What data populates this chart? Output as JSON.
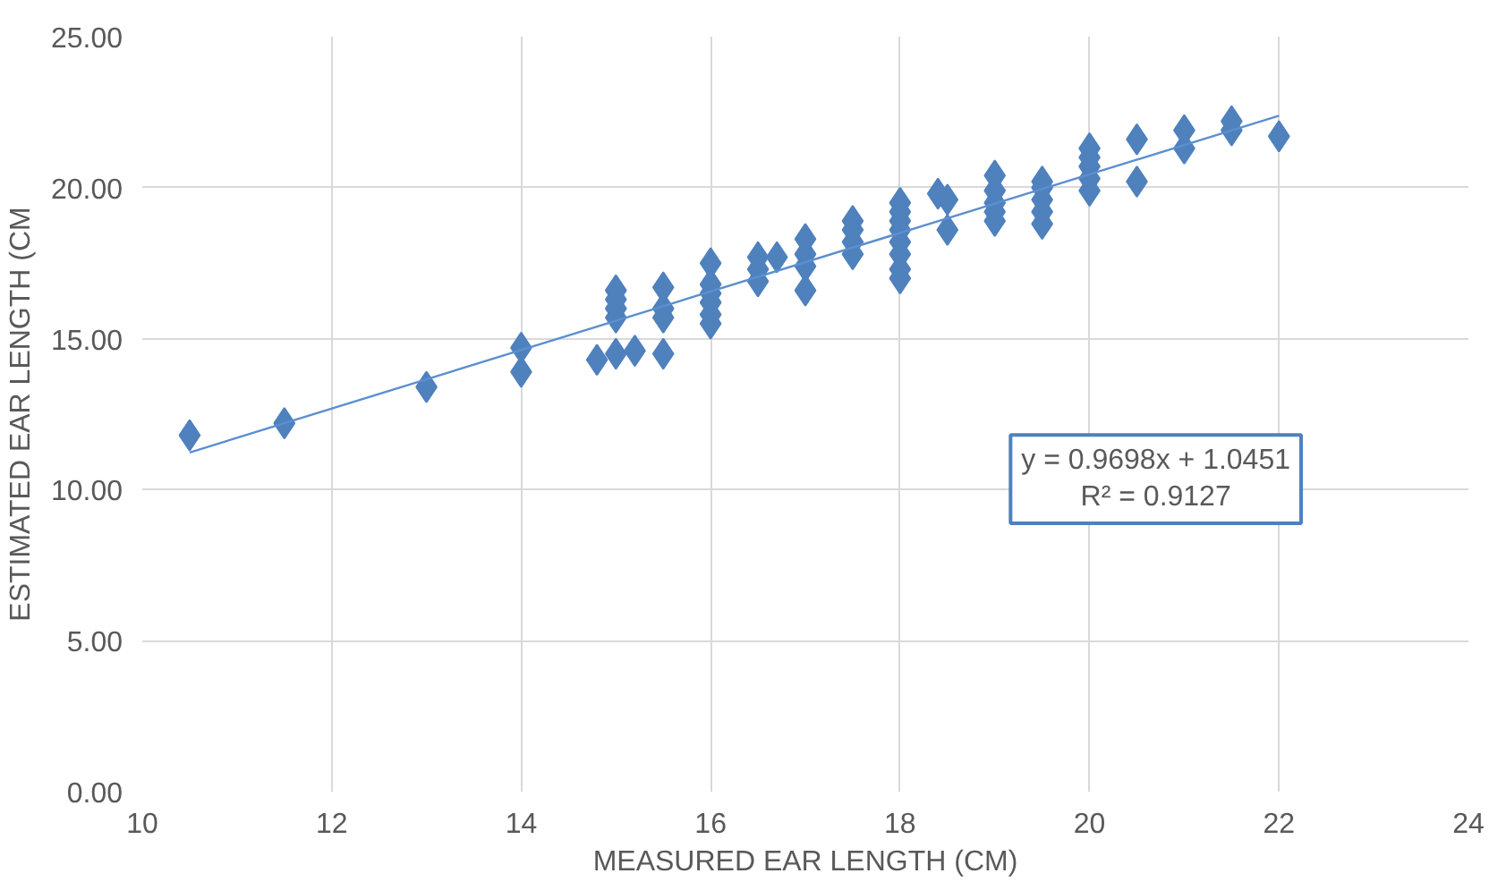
{
  "chart_data": {
    "type": "scatter",
    "xlabel": "MEASURED EAR LENGTH (CM)",
    "ylabel": "ESTIMATED EAR LENGTH (CM",
    "xlim": [
      10,
      24
    ],
    "xticks": [
      10,
      12,
      14,
      16,
      18,
      20,
      22,
      24
    ],
    "ylim": [
      0,
      25
    ],
    "yticks": [
      {
        "value": 0,
        "label": "0.00"
      },
      {
        "value": 5,
        "label": "5.00"
      },
      {
        "value": 10,
        "label": "10.00"
      },
      {
        "value": 15,
        "label": "15.00"
      },
      {
        "value": 20,
        "label": "20.00"
      },
      {
        "value": 25,
        "label": "25.00"
      }
    ],
    "grid": true,
    "marker": "diamond",
    "annotations": [
      "y = 0.9698x + 1.0451",
      "R² = 0.9127"
    ],
    "series": [
      {
        "color": "#4f81bd",
        "x": [
          10.5,
          11.5,
          13,
          14,
          14,
          14.8,
          15,
          15,
          15,
          15,
          15,
          15.2,
          15.5,
          15.5,
          15.5,
          15.5,
          16,
          16,
          16,
          16,
          16,
          16,
          16.5,
          16.5,
          16.5,
          16.7,
          17,
          17,
          17,
          17,
          17.5,
          17.5,
          17.5,
          17.5,
          18,
          18,
          18,
          18,
          18,
          18,
          18,
          18,
          18.4,
          18.5,
          18.5,
          19,
          19,
          19,
          19,
          19,
          19.5,
          19.5,
          19.5,
          19.5,
          19.5,
          20,
          20,
          20,
          20,
          20,
          20.5,
          20.5,
          21,
          21,
          21.5,
          21.5,
          22
        ],
        "values": [
          11.8,
          12.2,
          13.4,
          14.7,
          13.9,
          14.3,
          14.5,
          15.7,
          16.0,
          16.3,
          16.6,
          14.6,
          14.5,
          15.7,
          16.0,
          16.7,
          15.5,
          15.8,
          16.2,
          16.5,
          16.8,
          17.5,
          16.9,
          17.3,
          17.7,
          17.7,
          16.6,
          17.4,
          17.8,
          18.3,
          17.8,
          18.2,
          18.6,
          18.9,
          17.0,
          17.3,
          17.8,
          18.2,
          18.6,
          18.9,
          19.2,
          19.5,
          19.8,
          19.6,
          18.6,
          18.9,
          19.2,
          19.5,
          19.9,
          20.4,
          18.8,
          19.2,
          19.6,
          20.0,
          20.2,
          19.9,
          20.3,
          20.7,
          21.0,
          21.3,
          20.2,
          21.6,
          21.3,
          21.9,
          21.9,
          22.2,
          21.7
        ]
      },
      {
        "type": "line",
        "marker": "none",
        "color": "#5b8fd0",
        "line_style": "solid",
        "x": [
          10.5,
          22
        ],
        "values": [
          11.23,
          22.38
        ]
      }
    ]
  }
}
